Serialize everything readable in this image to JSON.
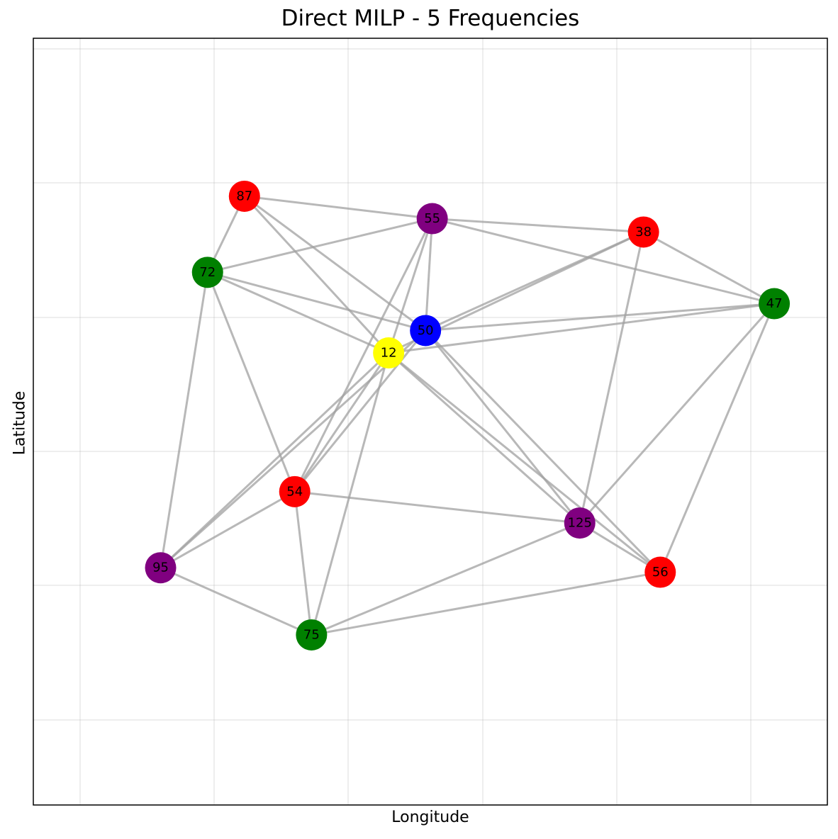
{
  "chart_data": {
    "type": "network",
    "title": "Direct MILP - 5 Frequencies",
    "xlabel": "Longitude",
    "ylabel": "Latitude",
    "grid": true,
    "nodes": [
      {
        "id": "87",
        "x": 0.245,
        "y": 0.835,
        "color": "#ff0000"
      },
      {
        "id": "55",
        "x": 0.525,
        "y": 0.81,
        "color": "#800080"
      },
      {
        "id": "38",
        "x": 0.84,
        "y": 0.795,
        "color": "#ff0000"
      },
      {
        "id": "72",
        "x": 0.19,
        "y": 0.75,
        "color": "#008000"
      },
      {
        "id": "50",
        "x": 0.515,
        "y": 0.685,
        "color": "#0000ff"
      },
      {
        "id": "12",
        "x": 0.46,
        "y": 0.66,
        "color": "#ffff00"
      },
      {
        "id": "47",
        "x": 1.035,
        "y": 0.715,
        "color": "#008000"
      },
      {
        "id": "54",
        "x": 0.32,
        "y": 0.505,
        "color": "#ff0000"
      },
      {
        "id": "125",
        "x": 0.745,
        "y": 0.47,
        "color": "#800080"
      },
      {
        "id": "95",
        "x": 0.12,
        "y": 0.42,
        "color": "#800080"
      },
      {
        "id": "56",
        "x": 0.865,
        "y": 0.415,
        "color": "#ff0000"
      },
      {
        "id": "75",
        "x": 0.345,
        "y": 0.345,
        "color": "#008000"
      }
    ],
    "edges": [
      [
        "87",
        "55"
      ],
      [
        "87",
        "72"
      ],
      [
        "87",
        "50"
      ],
      [
        "87",
        "12"
      ],
      [
        "55",
        "38"
      ],
      [
        "55",
        "72"
      ],
      [
        "55",
        "50"
      ],
      [
        "55",
        "12"
      ],
      [
        "55",
        "47"
      ],
      [
        "55",
        "54"
      ],
      [
        "38",
        "50"
      ],
      [
        "38",
        "12"
      ],
      [
        "38",
        "47"
      ],
      [
        "38",
        "125"
      ],
      [
        "72",
        "50"
      ],
      [
        "72",
        "12"
      ],
      [
        "72",
        "54"
      ],
      [
        "72",
        "95"
      ],
      [
        "50",
        "47"
      ],
      [
        "50",
        "125"
      ],
      [
        "50",
        "56"
      ],
      [
        "50",
        "54"
      ],
      [
        "50",
        "95"
      ],
      [
        "12",
        "47"
      ],
      [
        "12",
        "54"
      ],
      [
        "12",
        "95"
      ],
      [
        "12",
        "75"
      ],
      [
        "12",
        "125"
      ],
      [
        "12",
        "56"
      ],
      [
        "47",
        "125"
      ],
      [
        "47",
        "56"
      ],
      [
        "54",
        "125"
      ],
      [
        "54",
        "95"
      ],
      [
        "54",
        "75"
      ],
      [
        "125",
        "75"
      ],
      [
        "125",
        "56"
      ],
      [
        "95",
        "75"
      ],
      [
        "75",
        "56"
      ]
    ],
    "edge_color": "#a0a0a0"
  }
}
